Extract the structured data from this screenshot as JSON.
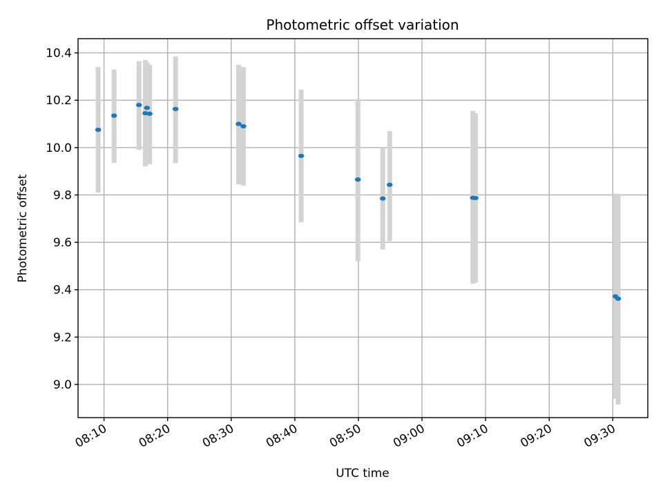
{
  "chart_data": {
    "type": "scatter",
    "title": "Photometric offset variation",
    "xlabel": "UTC time",
    "ylabel": "Photometric offset",
    "x_tick_labels": [
      "08:10",
      "08:20",
      "08:30",
      "08:40",
      "08:50",
      "09:00",
      "09:10",
      "09:20",
      "09:30"
    ],
    "y_tick_labels": [
      "9.0",
      "9.2",
      "9.4",
      "9.6",
      "9.8",
      "10.0",
      "10.2",
      "10.4"
    ],
    "x_ticks": [
      "08:10",
      "08:20",
      "08:30",
      "08:40",
      "08:50",
      "09:00",
      "09:10",
      "09:20",
      "09:30"
    ],
    "y_ticks": [
      9.0,
      9.2,
      9.4,
      9.6,
      9.8,
      10.0,
      10.2,
      10.4
    ],
    "xlim": [
      "08:05:55",
      "09:35:30"
    ],
    "ylim": [
      8.86,
      10.46
    ],
    "grid": true,
    "marker_color": "#1f77b4",
    "errorbar_color": "#d3d3d3",
    "points": [
      {
        "time": "08:09:05",
        "value": 10.075,
        "low": 9.81,
        "high": 10.34
      },
      {
        "time": "08:11:35",
        "value": 10.135,
        "low": 9.935,
        "high": 10.33
      },
      {
        "time": "08:15:30",
        "value": 10.18,
        "low": 9.99,
        "high": 10.365
      },
      {
        "time": "08:16:30",
        "value": 10.145,
        "low": 9.92,
        "high": 10.37
      },
      {
        "time": "08:16:45",
        "value": 10.168,
        "low": 9.935,
        "high": 10.36
      },
      {
        "time": "08:17:10",
        "value": 10.143,
        "low": 9.93,
        "high": 10.35
      },
      {
        "time": "08:21:15",
        "value": 10.163,
        "low": 9.935,
        "high": 10.385
      },
      {
        "time": "08:31:10",
        "value": 10.1,
        "low": 9.845,
        "high": 10.35
      },
      {
        "time": "08:31:55",
        "value": 10.09,
        "low": 9.84,
        "high": 10.34
      },
      {
        "time": "08:41:00",
        "value": 9.965,
        "low": 9.685,
        "high": 10.245
      },
      {
        "time": "08:49:55",
        "value": 9.865,
        "low": 9.52,
        "high": 10.205
      },
      {
        "time": "08:53:50",
        "value": 9.785,
        "low": 9.57,
        "high": 10.0
      },
      {
        "time": "08:54:55",
        "value": 9.843,
        "low": 9.605,
        "high": 10.07
      },
      {
        "time": "09:08:00",
        "value": 9.788,
        "low": 9.425,
        "high": 10.155
      },
      {
        "time": "09:08:25",
        "value": 9.787,
        "low": 9.43,
        "high": 10.145
      },
      {
        "time": "09:30:25",
        "value": 9.372,
        "low": 8.94,
        "high": 9.805
      },
      {
        "time": "09:30:50",
        "value": 9.362,
        "low": 8.915,
        "high": 9.805
      }
    ]
  }
}
